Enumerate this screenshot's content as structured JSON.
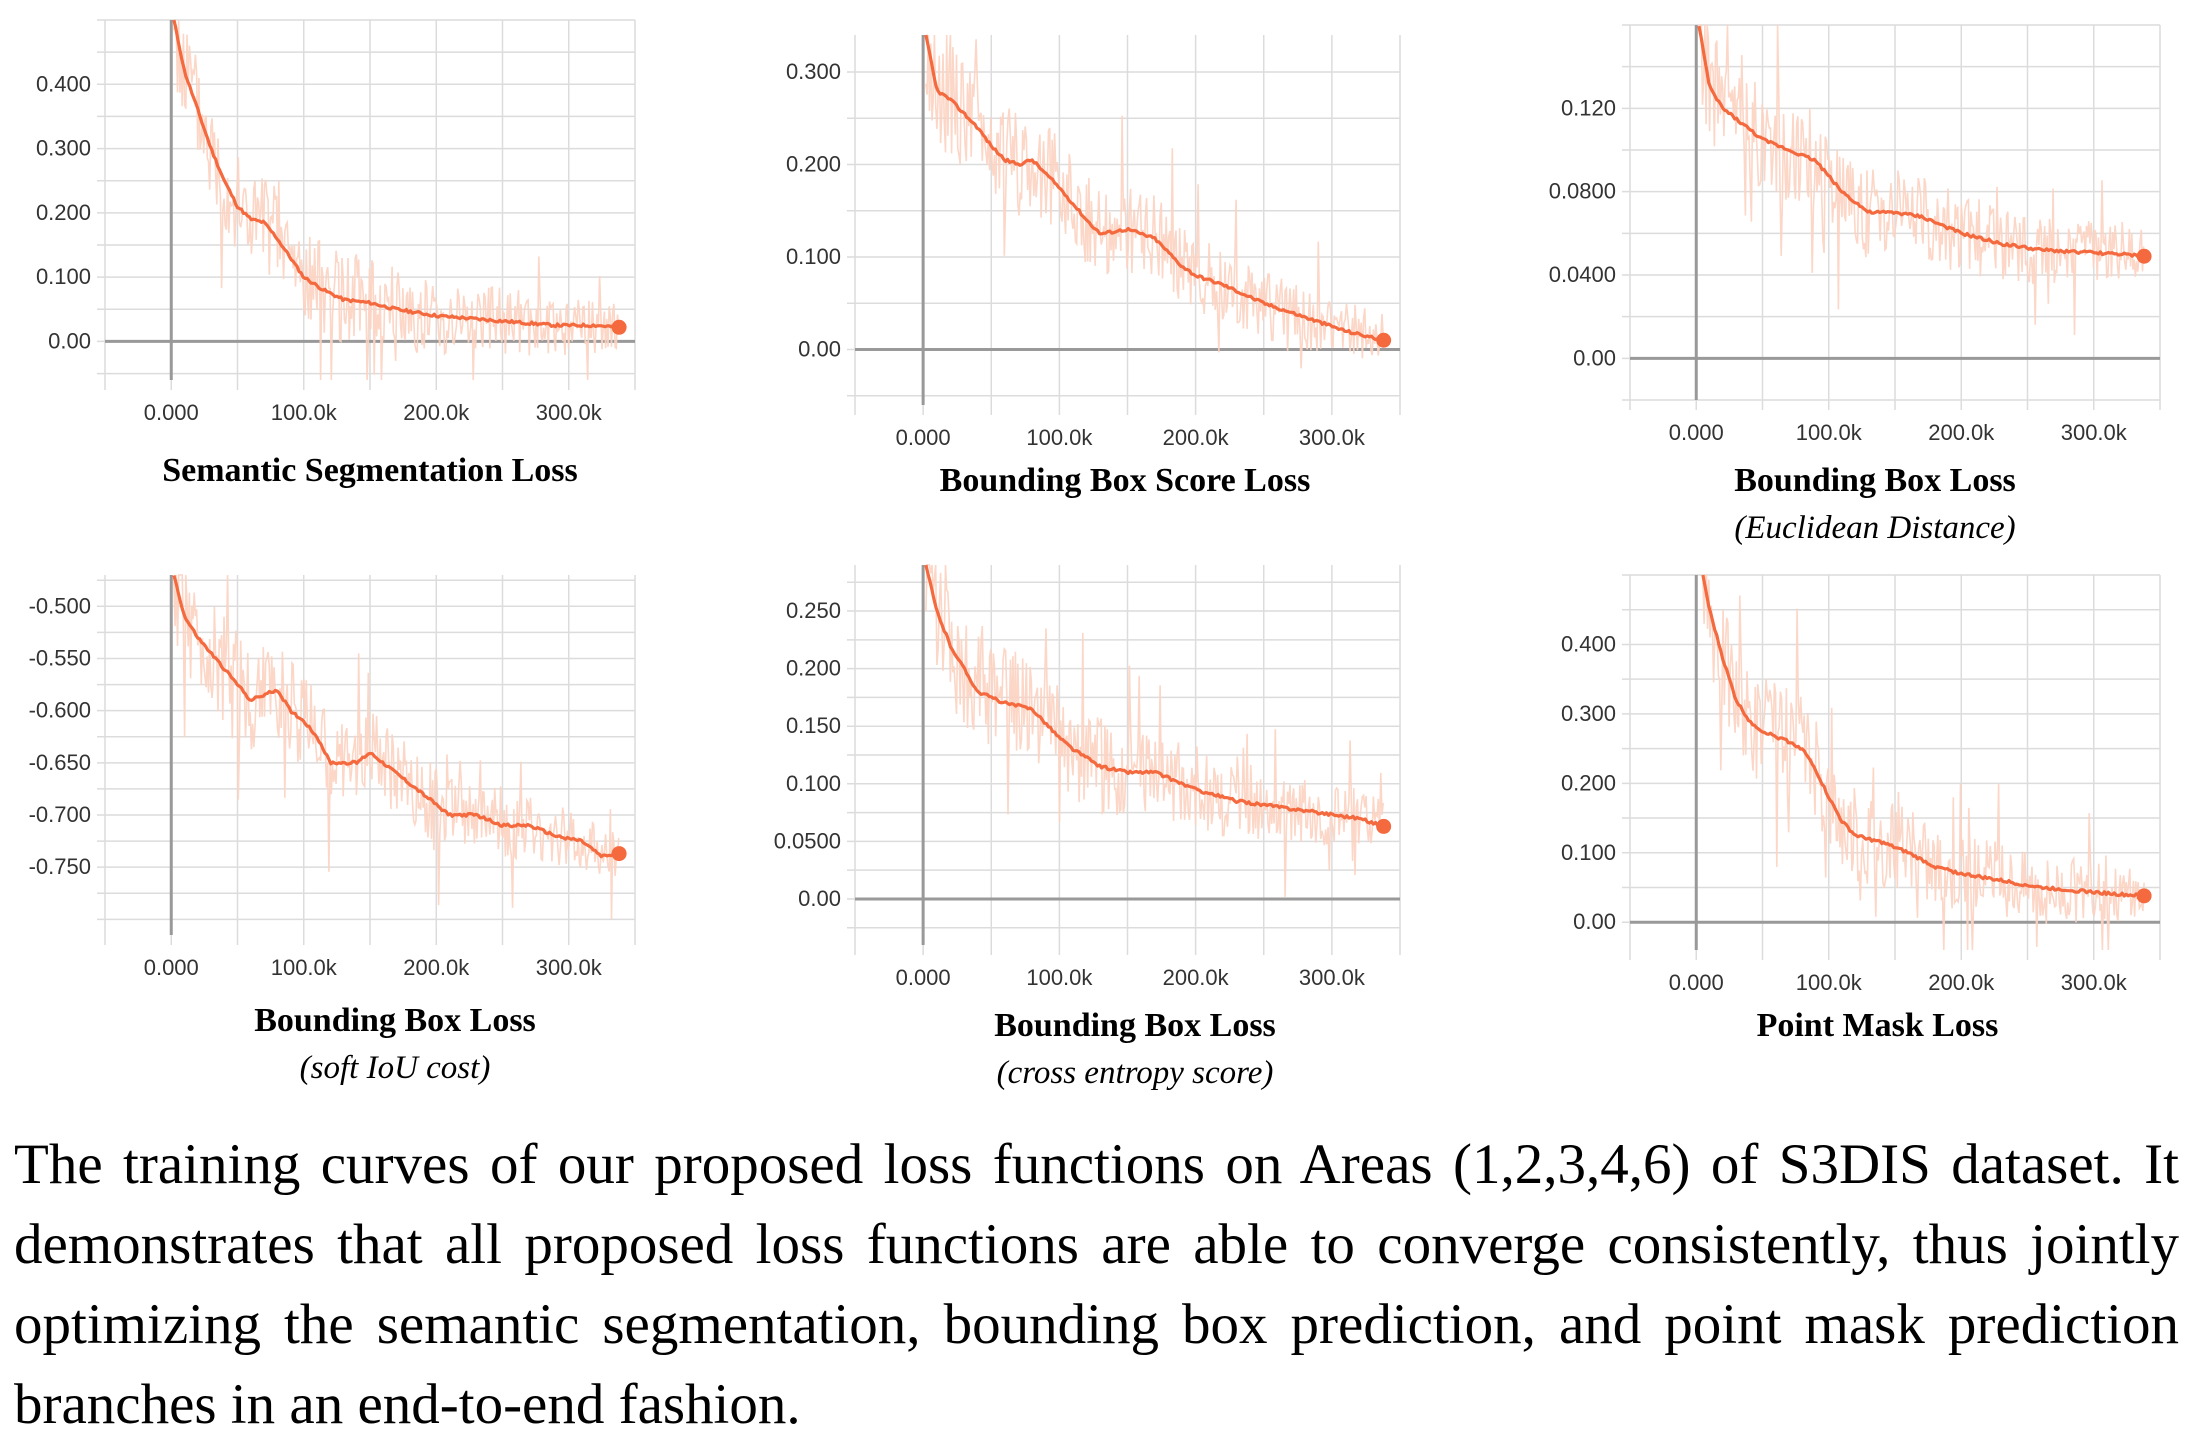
{
  "caption": "The training curves of our proposed loss functions on Areas (1,2,3,4,6) of S3DIS dataset. It demonstrates that all proposed loss functions are able to converge consistently, thus jointly optimizing the semantic segmentation, bounding box prediction, and point mask prediction branches in an end-to-end fashion.",
  "colors": {
    "smoothed": "#f4693e",
    "raw": "#fcd2c0",
    "grid": "#dcdcdc",
    "axis": "#999999"
  },
  "chart_data": [
    {
      "type": "line",
      "title": "Semantic Segmentation Loss",
      "subtitle": "",
      "xlim": [
        -50000,
        350000
      ],
      "ylim": [
        -0.06,
        0.5
      ],
      "x_ticks": [
        0,
        100000,
        200000,
        300000
      ],
      "x_tick_labels": [
        "0.000",
        "100.0k",
        "200.0k",
        "300.0k"
      ],
      "y_ticks": [
        0,
        0.1,
        0.2,
        0.3,
        0.4
      ],
      "y_tick_labels": [
        "0.00",
        "0.100",
        "0.200",
        "0.300",
        "0.400"
      ],
      "grid": true,
      "series": [
        {
          "x": [
            2000,
            10000,
            20000,
            30000,
            40000,
            50000,
            60000,
            70000,
            80000,
            90000,
            100000,
            115000,
            130000,
            150000,
            170000,
            200000,
            230000,
            260000,
            290000,
            320000,
            338000
          ],
          "y": [
            0.5,
            0.42,
            0.36,
            0.3,
            0.25,
            0.21,
            0.19,
            0.185,
            0.16,
            0.13,
            0.1,
            0.08,
            0.065,
            0.06,
            0.05,
            0.04,
            0.035,
            0.03,
            0.025,
            0.025,
            0.022
          ]
        }
      ]
    },
    {
      "type": "line",
      "title": "Bounding Box Score Loss",
      "subtitle": "",
      "xlim": [
        -50000,
        350000
      ],
      "ylim": [
        -0.06,
        0.34
      ],
      "x_ticks": [
        0,
        100000,
        200000,
        300000
      ],
      "x_tick_labels": [
        "0.000",
        "100.0k",
        "200.0k",
        "300.0k"
      ],
      "y_ticks": [
        0,
        0.1,
        0.2,
        0.3
      ],
      "y_tick_labels": [
        "0.00",
        "0.100",
        "0.200",
        "0.300"
      ],
      "grid": true,
      "series": [
        {
          "x": [
            2000,
            10000,
            20000,
            40000,
            50000,
            60000,
            70000,
            80000,
            100000,
            120000,
            130000,
            150000,
            170000,
            190000,
            200000,
            220000,
            250000,
            280000,
            310000,
            338000
          ],
          "y": [
            0.34,
            0.28,
            0.27,
            0.24,
            0.22,
            0.205,
            0.2,
            0.205,
            0.175,
            0.14,
            0.125,
            0.13,
            0.12,
            0.09,
            0.08,
            0.07,
            0.05,
            0.035,
            0.02,
            0.01
          ]
        }
      ]
    },
    {
      "type": "line",
      "title": "Bounding Box Loss",
      "subtitle": "(Euclidean Distance)",
      "xlim": [
        -50000,
        350000
      ],
      "ylim": [
        -0.02,
        0.16
      ],
      "x_ticks": [
        0,
        100000,
        200000,
        300000
      ],
      "x_tick_labels": [
        "0.000",
        "100.0k",
        "200.0k",
        "300.0k"
      ],
      "y_ticks": [
        0,
        0.04,
        0.08,
        0.12
      ],
      "y_tick_labels": [
        "0.00",
        "0.0400",
        "0.0800",
        "0.120"
      ],
      "grid": true,
      "series": [
        {
          "x": [
            2000,
            10000,
            20000,
            30000,
            50000,
            70000,
            90000,
            110000,
            130000,
            150000,
            170000,
            200000,
            230000,
            260000,
            290000,
            320000,
            338000
          ],
          "y": [
            0.16,
            0.13,
            0.12,
            0.115,
            0.105,
            0.1,
            0.095,
            0.08,
            0.07,
            0.07,
            0.068,
            0.06,
            0.055,
            0.052,
            0.051,
            0.05,
            0.049
          ]
        }
      ]
    },
    {
      "type": "line",
      "title": "Bounding Box Loss",
      "subtitle": "(soft IoU cost)",
      "xlim": [
        -50000,
        350000
      ],
      "ylim": [
        -0.815,
        -0.47
      ],
      "x_ticks": [
        0,
        100000,
        200000,
        300000
      ],
      "x_tick_labels": [
        "0.000",
        "100.0k",
        "200.0k",
        "300.0k"
      ],
      "y_ticks": [
        -0.75,
        -0.7,
        -0.65,
        -0.6,
        -0.55,
        -0.5
      ],
      "y_tick_labels": [
        "-0.750",
        "-0.700",
        "-0.650",
        "-0.600",
        "-0.550",
        "-0.500"
      ],
      "grid": true,
      "series": [
        {
          "x": [
            2000,
            10000,
            20000,
            40000,
            60000,
            80000,
            90000,
            100000,
            110000,
            120000,
            140000,
            150000,
            160000,
            170000,
            190000,
            210000,
            230000,
            250000,
            270000,
            290000,
            310000,
            325000,
            338000
          ],
          "y": [
            -0.47,
            -0.51,
            -0.53,
            -0.56,
            -0.59,
            -0.58,
            -0.6,
            -0.61,
            -0.625,
            -0.65,
            -0.65,
            -0.64,
            -0.65,
            -0.66,
            -0.68,
            -0.7,
            -0.7,
            -0.71,
            -0.71,
            -0.72,
            -0.725,
            -0.74,
            -0.737
          ]
        }
      ]
    },
    {
      "type": "line",
      "title": "Bounding Box Loss",
      "subtitle": "(cross entropy score)",
      "xlim": [
        -50000,
        350000
      ],
      "ylim": [
        -0.04,
        0.29
      ],
      "x_ticks": [
        0,
        100000,
        200000,
        300000
      ],
      "x_tick_labels": [
        "0.000",
        "100.0k",
        "200.0k",
        "300.0k"
      ],
      "y_ticks": [
        0,
        0.05,
        0.1,
        0.15,
        0.2,
        0.25
      ],
      "y_tick_labels": [
        "0.00",
        "0.0500",
        "0.100",
        "0.150",
        "0.200",
        "0.250"
      ],
      "grid": true,
      "series": [
        {
          "x": [
            2000,
            10000,
            20000,
            30000,
            40000,
            60000,
            80000,
            100000,
            110000,
            130000,
            150000,
            170000,
            200000,
            230000,
            260000,
            290000,
            320000,
            338000
          ],
          "y": [
            0.29,
            0.25,
            0.22,
            0.2,
            0.18,
            0.17,
            0.165,
            0.14,
            0.13,
            0.115,
            0.11,
            0.11,
            0.095,
            0.085,
            0.08,
            0.075,
            0.07,
            0.063
          ]
        }
      ]
    },
    {
      "type": "line",
      "title": "Point Mask Loss",
      "subtitle": "",
      "xlim": [
        -50000,
        350000
      ],
      "ylim": [
        -0.04,
        0.5
      ],
      "x_ticks": [
        0,
        100000,
        200000,
        300000
      ],
      "x_tick_labels": [
        "0.000",
        "100.0k",
        "200.0k",
        "300.0k"
      ],
      "y_ticks": [
        0,
        0.1,
        0.2,
        0.3,
        0.4
      ],
      "y_tick_labels": [
        "0.00",
        "0.100",
        "0.200",
        "0.300",
        "0.400"
      ],
      "grid": true,
      "series": [
        {
          "x": [
            5000,
            10000,
            20000,
            30000,
            40000,
            50000,
            70000,
            80000,
            90000,
            100000,
            110000,
            120000,
            140000,
            160000,
            180000,
            200000,
            230000,
            260000,
            290000,
            320000,
            338000
          ],
          "y": [
            0.5,
            0.45,
            0.38,
            0.32,
            0.29,
            0.275,
            0.26,
            0.25,
            0.22,
            0.18,
            0.145,
            0.125,
            0.115,
            0.1,
            0.08,
            0.07,
            0.06,
            0.05,
            0.045,
            0.04,
            0.038
          ]
        }
      ]
    }
  ]
}
